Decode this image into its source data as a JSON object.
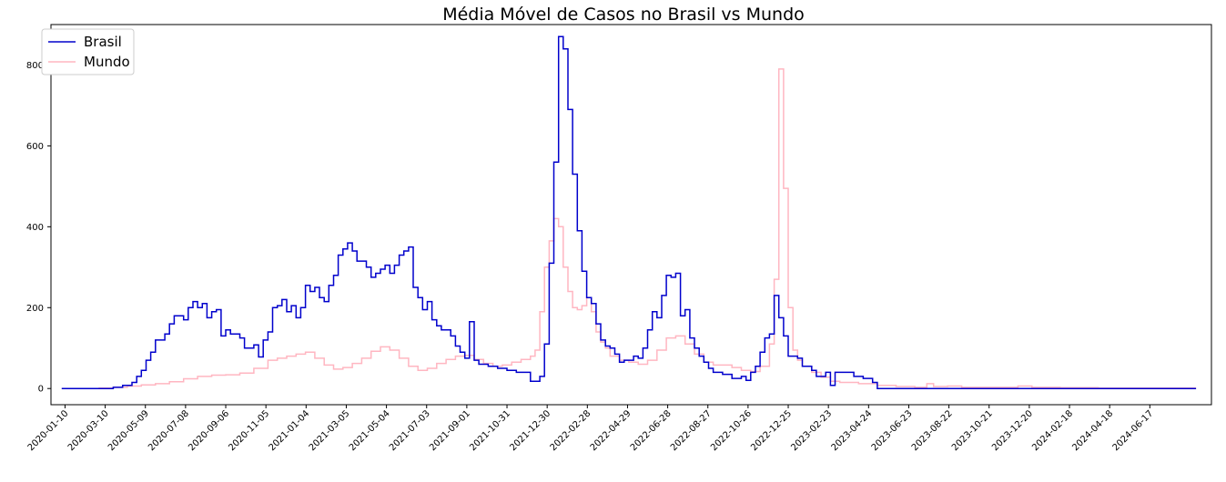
{
  "chart_data": {
    "type": "line",
    "title": "Média Móvel de Casos no Brasil vs Mundo",
    "xlabel": "",
    "ylabel": "",
    "ylim": [
      -40,
      900
    ],
    "yticks": [
      0,
      200,
      400,
      600,
      800
    ],
    "xticks": [
      "2020-01-10",
      "2020-03-10",
      "2020-05-09",
      "2020-07-08",
      "2020-09-06",
      "2020-11-05",
      "2021-01-04",
      "2021-03-05",
      "2021-05-04",
      "2021-07-03",
      "2021-09-01",
      "2021-10-31",
      "2021-12-30",
      "2022-02-28",
      "2022-04-29",
      "2022-06-28",
      "2022-08-27",
      "2022-10-26",
      "2022-12-25",
      "2023-02-23",
      "2023-04-24",
      "2023-06-23",
      "2023-08-22",
      "2023-10-21",
      "2023-12-20",
      "2024-02-18",
      "2024-04-18",
      "2024-06-17"
    ],
    "xlim": [
      "2019-12-20",
      "2024-09-17"
    ],
    "legend": "top-left",
    "grid": false,
    "step": true,
    "series": [
      {
        "name": "Brasil",
        "color": "#0000cc",
        "points": [
          [
            "2020-01-05",
            0
          ],
          [
            "2020-03-01",
            0
          ],
          [
            "2020-03-22",
            3
          ],
          [
            "2020-04-05",
            8
          ],
          [
            "2020-04-19",
            15
          ],
          [
            "2020-04-26",
            30
          ],
          [
            "2020-05-03",
            45
          ],
          [
            "2020-05-10",
            70
          ],
          [
            "2020-05-17",
            90
          ],
          [
            "2020-05-24",
            120
          ],
          [
            "2020-06-07",
            135
          ],
          [
            "2020-06-14",
            160
          ],
          [
            "2020-06-21",
            180
          ],
          [
            "2020-07-05",
            170
          ],
          [
            "2020-07-12",
            200
          ],
          [
            "2020-07-19",
            215
          ],
          [
            "2020-07-26",
            200
          ],
          [
            "2020-08-02",
            210
          ],
          [
            "2020-08-09",
            175
          ],
          [
            "2020-08-16",
            190
          ],
          [
            "2020-08-23",
            195
          ],
          [
            "2020-08-30",
            130
          ],
          [
            "2020-09-06",
            145
          ],
          [
            "2020-09-13",
            135
          ],
          [
            "2020-09-27",
            125
          ],
          [
            "2020-10-04",
            100
          ],
          [
            "2020-10-18",
            108
          ],
          [
            "2020-10-25",
            78
          ],
          [
            "2020-11-01",
            120
          ],
          [
            "2020-11-08",
            140
          ],
          [
            "2020-11-15",
            200
          ],
          [
            "2020-11-22",
            205
          ],
          [
            "2020-11-29",
            220
          ],
          [
            "2020-12-06",
            190
          ],
          [
            "2020-12-13",
            205
          ],
          [
            "2020-12-20",
            175
          ],
          [
            "2020-12-27",
            200
          ],
          [
            "2021-01-03",
            255
          ],
          [
            "2021-01-10",
            240
          ],
          [
            "2021-01-17",
            250
          ],
          [
            "2021-01-24",
            225
          ],
          [
            "2021-01-31",
            215
          ],
          [
            "2021-02-07",
            255
          ],
          [
            "2021-02-14",
            280
          ],
          [
            "2021-02-21",
            330
          ],
          [
            "2021-02-28",
            345
          ],
          [
            "2021-03-07",
            360
          ],
          [
            "2021-03-14",
            340
          ],
          [
            "2021-03-21",
            315
          ],
          [
            "2021-04-04",
            300
          ],
          [
            "2021-04-11",
            275
          ],
          [
            "2021-04-18",
            285
          ],
          [
            "2021-04-25",
            295
          ],
          [
            "2021-05-02",
            305
          ],
          [
            "2021-05-09",
            285
          ],
          [
            "2021-05-16",
            305
          ],
          [
            "2021-05-23",
            330
          ],
          [
            "2021-05-30",
            340
          ],
          [
            "2021-06-06",
            350
          ],
          [
            "2021-06-13",
            250
          ],
          [
            "2021-06-20",
            225
          ],
          [
            "2021-06-27",
            195
          ],
          [
            "2021-07-04",
            215
          ],
          [
            "2021-07-11",
            170
          ],
          [
            "2021-07-18",
            155
          ],
          [
            "2021-07-25",
            145
          ],
          [
            "2021-08-08",
            130
          ],
          [
            "2021-08-15",
            105
          ],
          [
            "2021-08-22",
            90
          ],
          [
            "2021-08-29",
            75
          ],
          [
            "2021-09-05",
            165
          ],
          [
            "2021-09-12",
            70
          ],
          [
            "2021-09-19",
            60
          ],
          [
            "2021-10-03",
            55
          ],
          [
            "2021-10-17",
            50
          ],
          [
            "2021-10-31",
            45
          ],
          [
            "2021-11-14",
            40
          ],
          [
            "2021-12-05",
            18
          ],
          [
            "2021-12-19",
            30
          ],
          [
            "2021-12-26",
            110
          ],
          [
            "2022-01-02",
            310
          ],
          [
            "2022-01-09",
            560
          ],
          [
            "2022-01-16",
            870
          ],
          [
            "2022-01-23",
            840
          ],
          [
            "2022-01-30",
            690
          ],
          [
            "2022-02-06",
            530
          ],
          [
            "2022-02-13",
            390
          ],
          [
            "2022-02-20",
            290
          ],
          [
            "2022-02-27",
            225
          ],
          [
            "2022-03-06",
            210
          ],
          [
            "2022-03-13",
            160
          ],
          [
            "2022-03-20",
            120
          ],
          [
            "2022-03-27",
            105
          ],
          [
            "2022-04-03",
            100
          ],
          [
            "2022-04-10",
            85
          ],
          [
            "2022-04-17",
            65
          ],
          [
            "2022-04-24",
            70
          ],
          [
            "2022-05-08",
            80
          ],
          [
            "2022-05-15",
            75
          ],
          [
            "2022-05-22",
            100
          ],
          [
            "2022-05-29",
            145
          ],
          [
            "2022-06-05",
            190
          ],
          [
            "2022-06-12",
            175
          ],
          [
            "2022-06-19",
            230
          ],
          [
            "2022-06-26",
            280
          ],
          [
            "2022-07-03",
            275
          ],
          [
            "2022-07-10",
            285
          ],
          [
            "2022-07-17",
            180
          ],
          [
            "2022-07-24",
            195
          ],
          [
            "2022-07-31",
            125
          ],
          [
            "2022-08-07",
            100
          ],
          [
            "2022-08-14",
            80
          ],
          [
            "2022-08-21",
            65
          ],
          [
            "2022-08-28",
            50
          ],
          [
            "2022-09-04",
            40
          ],
          [
            "2022-09-18",
            35
          ],
          [
            "2022-10-02",
            25
          ],
          [
            "2022-10-16",
            30
          ],
          [
            "2022-10-23",
            20
          ],
          [
            "2022-10-30",
            40
          ],
          [
            "2022-11-06",
            55
          ],
          [
            "2022-11-13",
            90
          ],
          [
            "2022-11-20",
            125
          ],
          [
            "2022-11-27",
            135
          ],
          [
            "2022-12-04",
            230
          ],
          [
            "2022-12-11",
            175
          ],
          [
            "2022-12-18",
            130
          ],
          [
            "2022-12-25",
            80
          ],
          [
            "2023-01-08",
            75
          ],
          [
            "2023-01-15",
            55
          ],
          [
            "2023-01-29",
            45
          ],
          [
            "2023-02-05",
            30
          ],
          [
            "2023-02-19",
            40
          ],
          [
            "2023-02-26",
            8
          ],
          [
            "2023-03-05",
            40
          ],
          [
            "2023-04-02",
            30
          ],
          [
            "2023-04-16",
            25
          ],
          [
            "2023-04-30",
            15
          ],
          [
            "2023-05-07",
            0
          ],
          [
            "2024-08-25",
            0
          ]
        ]
      },
      {
        "name": "Mundo",
        "color": "#ffb6c1",
        "points": [
          [
            "2020-01-05",
            0
          ],
          [
            "2020-03-01",
            1
          ],
          [
            "2020-03-22",
            3
          ],
          [
            "2020-04-12",
            6
          ],
          [
            "2020-05-03",
            9
          ],
          [
            "2020-05-24",
            12
          ],
          [
            "2020-06-14",
            17
          ],
          [
            "2020-07-05",
            24
          ],
          [
            "2020-07-26",
            30
          ],
          [
            "2020-08-16",
            33
          ],
          [
            "2020-09-06",
            34
          ],
          [
            "2020-09-27",
            38
          ],
          [
            "2020-10-18",
            50
          ],
          [
            "2020-11-08",
            70
          ],
          [
            "2020-11-22",
            75
          ],
          [
            "2020-12-06",
            80
          ],
          [
            "2020-12-20",
            85
          ],
          [
            "2021-01-03",
            90
          ],
          [
            "2021-01-17",
            75
          ],
          [
            "2021-01-31",
            58
          ],
          [
            "2021-02-14",
            48
          ],
          [
            "2021-02-28",
            52
          ],
          [
            "2021-03-14",
            62
          ],
          [
            "2021-03-28",
            75
          ],
          [
            "2021-04-11",
            92
          ],
          [
            "2021-04-25",
            103
          ],
          [
            "2021-05-09",
            95
          ],
          [
            "2021-05-23",
            75
          ],
          [
            "2021-06-06",
            55
          ],
          [
            "2021-06-20",
            45
          ],
          [
            "2021-07-04",
            50
          ],
          [
            "2021-07-18",
            62
          ],
          [
            "2021-08-01",
            72
          ],
          [
            "2021-08-15",
            80
          ],
          [
            "2021-08-29",
            82
          ],
          [
            "2021-09-12",
            72
          ],
          [
            "2021-09-26",
            62
          ],
          [
            "2021-10-10",
            55
          ],
          [
            "2021-10-24",
            58
          ],
          [
            "2021-11-07",
            65
          ],
          [
            "2021-11-21",
            72
          ],
          [
            "2021-12-05",
            80
          ],
          [
            "2021-12-12",
            95
          ],
          [
            "2021-12-19",
            190
          ],
          [
            "2021-12-26",
            300
          ],
          [
            "2022-01-02",
            365
          ],
          [
            "2022-01-09",
            420
          ],
          [
            "2022-01-16",
            400
          ],
          [
            "2022-01-23",
            300
          ],
          [
            "2022-01-30",
            240
          ],
          [
            "2022-02-06",
            200
          ],
          [
            "2022-02-13",
            195
          ],
          [
            "2022-02-20",
            205
          ],
          [
            "2022-02-27",
            225
          ],
          [
            "2022-03-06",
            190
          ],
          [
            "2022-03-13",
            140
          ],
          [
            "2022-03-20",
            115
          ],
          [
            "2022-03-27",
            100
          ],
          [
            "2022-04-03",
            80
          ],
          [
            "2022-04-17",
            70
          ],
          [
            "2022-05-01",
            65
          ],
          [
            "2022-05-15",
            60
          ],
          [
            "2022-05-29",
            70
          ],
          [
            "2022-06-12",
            95
          ],
          [
            "2022-06-26",
            125
          ],
          [
            "2022-07-10",
            130
          ],
          [
            "2022-07-24",
            110
          ],
          [
            "2022-08-07",
            85
          ],
          [
            "2022-08-21",
            65
          ],
          [
            "2022-09-04",
            58
          ],
          [
            "2022-10-02",
            52
          ],
          [
            "2022-10-16",
            45
          ],
          [
            "2022-10-30",
            42
          ],
          [
            "2022-11-13",
            55
          ],
          [
            "2022-11-27",
            110
          ],
          [
            "2022-12-04",
            270
          ],
          [
            "2022-12-11",
            790
          ],
          [
            "2022-12-18",
            495
          ],
          [
            "2022-12-25",
            200
          ],
          [
            "2023-01-01",
            95
          ],
          [
            "2023-01-08",
            70
          ],
          [
            "2023-01-15",
            55
          ],
          [
            "2023-01-29",
            40
          ],
          [
            "2023-02-12",
            28
          ],
          [
            "2023-02-26",
            18
          ],
          [
            "2023-03-12",
            15
          ],
          [
            "2023-04-09",
            12
          ],
          [
            "2023-05-07",
            8
          ],
          [
            "2023-06-04",
            5
          ],
          [
            "2023-07-02",
            3
          ],
          [
            "2023-07-20",
            12
          ],
          [
            "2023-07-30",
            5
          ],
          [
            "2023-08-20",
            6
          ],
          [
            "2023-09-10",
            3
          ],
          [
            "2023-11-05",
            3
          ],
          [
            "2023-12-03",
            6
          ],
          [
            "2023-12-24",
            3
          ],
          [
            "2024-02-04",
            2
          ],
          [
            "2024-04-01",
            1
          ],
          [
            "2024-06-01",
            1
          ],
          [
            "2024-08-25",
            1
          ]
        ]
      }
    ]
  }
}
